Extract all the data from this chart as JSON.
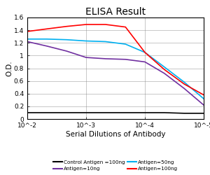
{
  "title": "ELISA Result",
  "ylabel": "O.D.",
  "xlabel": "Serial Dilutions of Antibody",
  "ylim": [
    0,
    1.6
  ],
  "yticks": [
    0,
    0.2,
    0.4,
    0.6,
    0.8,
    1.0,
    1.2,
    1.4,
    1.6
  ],
  "xtick_labels": [
    "10^-2",
    "10^-3",
    "10^-4",
    "10^-5"
  ],
  "xtick_positions": [
    0,
    1,
    2,
    3
  ],
  "lines": [
    {
      "label": "Control Antigen =100ng",
      "color": "#000000",
      "x": [
        0,
        0.33,
        0.67,
        1.0,
        1.33,
        1.67,
        2.0,
        2.33,
        2.67,
        3.0
      ],
      "y": [
        0.1,
        0.1,
        0.1,
        0.1,
        0.1,
        0.1,
        0.1,
        0.1,
        0.09,
        0.09
      ]
    },
    {
      "label": "Antigen=10ng",
      "color": "#7030a0",
      "x": [
        0,
        0.33,
        0.67,
        1.0,
        1.33,
        1.67,
        2.0,
        2.33,
        2.67,
        3.0
      ],
      "y": [
        1.22,
        1.15,
        1.07,
        0.97,
        0.95,
        0.94,
        0.9,
        0.72,
        0.48,
        0.22
      ]
    },
    {
      "label": "Antigen=50ng",
      "color": "#00b0f0",
      "x": [
        0,
        0.33,
        0.67,
        1.0,
        1.33,
        1.67,
        2.0,
        2.33,
        2.67,
        3.0
      ],
      "y": [
        1.26,
        1.26,
        1.25,
        1.23,
        1.22,
        1.18,
        1.05,
        0.82,
        0.58,
        0.32
      ]
    },
    {
      "label": "Antigen=100ng",
      "color": "#ff0000",
      "x": [
        0,
        0.33,
        0.67,
        1.0,
        1.33,
        1.67,
        2.0,
        2.33,
        2.67,
        3.0
      ],
      "y": [
        1.38,
        1.42,
        1.46,
        1.49,
        1.49,
        1.45,
        1.05,
        0.78,
        0.55,
        0.38
      ]
    }
  ],
  "legend_entries": [
    {
      "label": "Control Antigen =100ng",
      "color": "#000000"
    },
    {
      "label": "Antigen=10ng",
      "color": "#7030a0"
    },
    {
      "label": "Antigen=50ng",
      "color": "#00b0f0"
    },
    {
      "label": "Antigen=100ng",
      "color": "#ff0000"
    }
  ]
}
